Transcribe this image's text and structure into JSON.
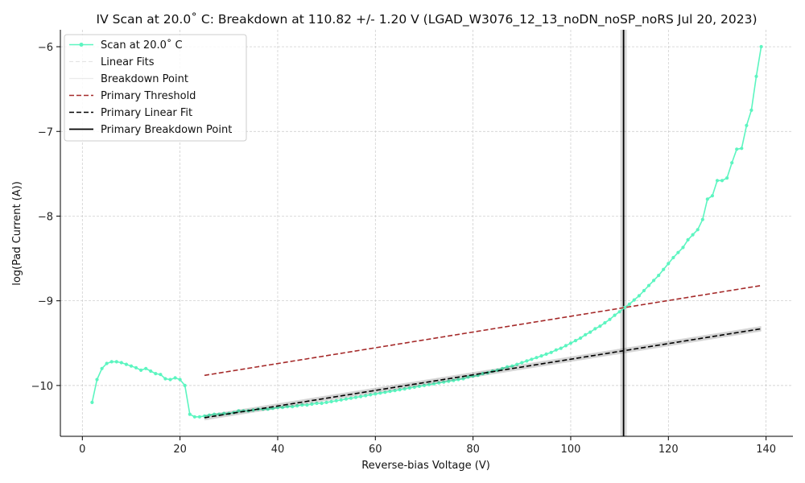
{
  "chart_data": {
    "type": "line",
    "title": "IV Scan at 20.0˚ C: Breakdown at 110.82 +/- 1.20 V (LGAD_W3076_12_13_noDN_noSP_noRS Jul 20, 2023)",
    "xlabel": "Reverse-bias Voltage (V)",
    "ylabel": "log(Pad Current (A))",
    "xlim": [
      -4.5,
      145.5
    ],
    "ylim": [
      -10.6,
      -5.8
    ],
    "x_ticks": [
      0,
      20,
      40,
      60,
      80,
      100,
      120,
      140
    ],
    "y_ticks": [
      -10,
      -9,
      -8,
      -7,
      -6
    ],
    "x_tick_labels": [
      "0",
      "20",
      "40",
      "60",
      "80",
      "100",
      "120",
      "140"
    ],
    "y_tick_labels": [
      "−10",
      "−9",
      "−8",
      "−7",
      "−6"
    ],
    "grid": true,
    "legend_position": "top-left",
    "legend": [
      "Scan at 20.0˚ C",
      "Linear Fits",
      "Breakdown Point",
      "Primary Threshold",
      "Primary Linear Fit",
      "Primary Breakdown Point"
    ],
    "series": [
      {
        "name": "Scan at 20.0˚ C",
        "color": "#5cf5c0",
        "x": [
          2,
          3,
          4,
          5,
          6,
          7,
          8,
          9,
          10,
          11,
          12,
          13,
          14,
          15,
          16,
          17,
          18,
          19,
          20,
          21,
          22,
          23,
          24,
          25,
          26,
          27,
          28,
          29,
          30,
          31,
          32,
          33,
          34,
          35,
          36,
          37,
          38,
          39,
          40,
          41,
          42,
          43,
          44,
          45,
          46,
          47,
          48,
          49,
          50,
          51,
          52,
          53,
          54,
          55,
          56,
          57,
          58,
          59,
          60,
          61,
          62,
          63,
          64,
          65,
          66,
          67,
          68,
          69,
          70,
          71,
          72,
          73,
          74,
          75,
          76,
          77,
          78,
          79,
          80,
          81,
          82,
          83,
          84,
          85,
          86,
          87,
          88,
          89,
          90,
          91,
          92,
          93,
          94,
          95,
          96,
          97,
          98,
          99,
          100,
          101,
          102,
          103,
          104,
          105,
          106,
          107,
          108,
          109,
          110,
          111,
          112,
          113,
          114,
          115,
          116,
          117,
          118,
          119,
          120,
          121,
          122,
          123,
          124,
          125,
          126,
          127,
          128,
          129,
          130,
          131,
          132,
          133,
          134,
          135,
          136,
          137,
          138,
          139
        ],
        "y": [
          -10.2,
          -9.93,
          -9.8,
          -9.74,
          -9.72,
          -9.72,
          -9.73,
          -9.75,
          -9.77,
          -9.79,
          -9.82,
          -9.8,
          -9.83,
          -9.86,
          -9.87,
          -9.92,
          -9.93,
          -9.91,
          -9.93,
          -10.0,
          -10.34,
          -10.37,
          -10.37,
          -10.36,
          -10.35,
          -10.34,
          -10.34,
          -10.33,
          -10.33,
          -10.32,
          -10.3,
          -10.3,
          -10.3,
          -10.29,
          -10.28,
          -10.28,
          -10.28,
          -10.27,
          -10.26,
          -10.26,
          -10.25,
          -10.25,
          -10.24,
          -10.23,
          -10.23,
          -10.22,
          -10.21,
          -10.21,
          -10.2,
          -10.19,
          -10.18,
          -10.17,
          -10.16,
          -10.15,
          -10.14,
          -10.13,
          -10.12,
          -10.11,
          -10.1,
          -10.09,
          -10.08,
          -10.07,
          -10.06,
          -10.05,
          -10.04,
          -10.03,
          -10.02,
          -10.01,
          -10.0,
          -9.99,
          -9.98,
          -9.97,
          -9.96,
          -9.95,
          -9.94,
          -9.93,
          -9.92,
          -9.9,
          -9.89,
          -9.88,
          -9.86,
          -9.85,
          -9.83,
          -9.82,
          -9.8,
          -9.78,
          -9.77,
          -9.75,
          -9.73,
          -9.71,
          -9.69,
          -9.67,
          -9.65,
          -9.63,
          -9.61,
          -9.58,
          -9.56,
          -9.53,
          -9.5,
          -9.47,
          -9.44,
          -9.4,
          -9.37,
          -9.33,
          -9.3,
          -9.26,
          -9.22,
          -9.17,
          -9.13,
          -9.08,
          -9.04,
          -8.99,
          -8.94,
          -8.88,
          -8.82,
          -8.76,
          -8.7,
          -8.63,
          -8.56,
          -8.49,
          -8.43,
          -8.37,
          -8.28,
          -8.22,
          -8.16,
          -8.04,
          -7.8,
          -7.76,
          -7.58,
          -7.58,
          -7.55,
          -7.37,
          -7.21,
          -7.2,
          -6.93,
          -6.75,
          -6.35,
          -6.0
        ]
      },
      {
        "name": "Primary Threshold",
        "color": "#a52a2a",
        "x": [
          25,
          139
        ],
        "y": [
          -9.88,
          -8.82
        ]
      },
      {
        "name": "Primary Linear Fit",
        "color": "#000000",
        "x": [
          25,
          139
        ],
        "y": [
          -10.38,
          -9.33
        ]
      }
    ],
    "breakdown": {
      "x": 110.82,
      "uncertainty": 1.2,
      "color": "#000000"
    }
  }
}
